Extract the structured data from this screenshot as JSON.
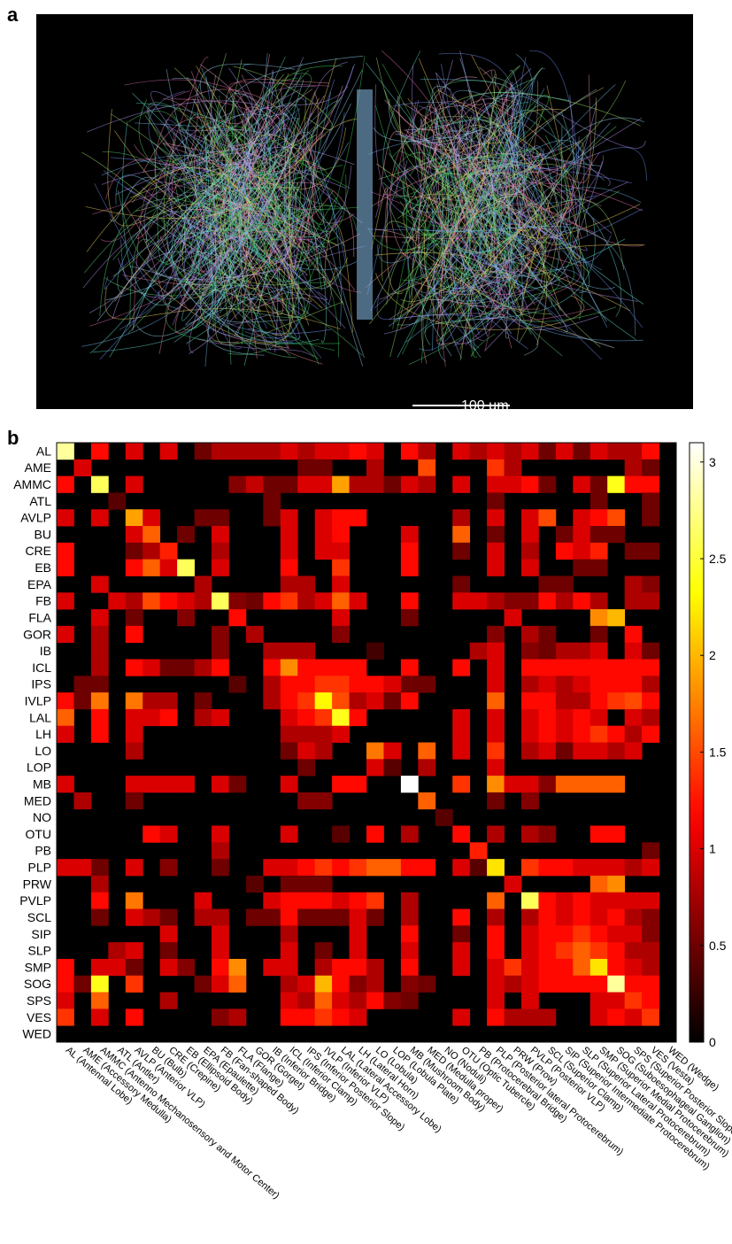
{
  "panel_labels": {
    "a": "a",
    "b": "b"
  },
  "scale_bar": {
    "label": "100 µm"
  },
  "chart_data": {
    "type": "heatmap",
    "title": "",
    "rows": [
      "AL",
      "AME",
      "AMMC",
      "ATL",
      "AVLP",
      "BU",
      "CRE",
      "EB",
      "EPA",
      "FB",
      "FLA",
      "GOR",
      "IB",
      "ICL",
      "IPS",
      "IVLP",
      "LAL",
      "LH",
      "LO",
      "LOP",
      "MB",
      "MED",
      "NO",
      "OTU",
      "PB",
      "PLP",
      "PRW",
      "PVLP",
      "SCL",
      "SIP",
      "SLP",
      "SMP",
      "SOG",
      "SPS",
      "VES",
      "WED"
    ],
    "columns": [
      "AL (Antennal Lobe)",
      "AME (Accessory Medulla)",
      "AMMC (Antenno Mechanosensory and Motor Center)",
      "ATL (Antler)",
      "AVLP (Anterior VLP)",
      "BU (Bulb)",
      "CRE (Crepine)",
      "EB (Ellipsoid Body)",
      "EPA (Epaulette)",
      "FB (Fan-shaped Body)",
      "FLA (Flange)",
      "GOR (Gorget)",
      "IB (Inferior Bridge)",
      "ICL (Inferior Clamp)",
      "IPS (Inferior Posterior Slope)",
      "IVLP (Inferior VLP)",
      "LAL (Lateral Accessory Lobe)",
      "LH (Lateral Horn)",
      "LO (Lobula)",
      "LOP (Lobula Plate)",
      "MB (Mushroom Body)",
      "MED (Medulla proper)",
      "NO (Noduli)",
      "OTU (Optic Tubercle)",
      "PB (Protocerebral Bridge)",
      "PLP (Posterior lateral Protocerebrum)",
      "PRW (Prow)",
      "PVLP (Posterior VLP)",
      "SCL (Superior Clamp)",
      "SIP (Superior Intermediate Protocerebrum)",
      "SLP (Superior Lateral Protocerebrum)",
      "SMP (Superior Medial Protocerebrum)",
      "SOG (Suboesophageal Ganglion)",
      "SPS (Superior Posterior Slope)",
      "VES (Vesta)",
      "WED (Wedge)"
    ],
    "colorbar": {
      "min": 0,
      "max": 3.1,
      "ticks": [
        "0",
        "0.5",
        "1",
        "1.5",
        "2",
        "2.5",
        "3"
      ],
      "colormap": "hot"
    },
    "values": [
      [
        2.8,
        0,
        1.2,
        0,
        1.0,
        0,
        1.0,
        0,
        0.5,
        0.8,
        0.8,
        0.8,
        0.8,
        1.0,
        0.8,
        1.0,
        1.0,
        1.2,
        1.0,
        0,
        1.2,
        0.8,
        0,
        1.0,
        0.8,
        1.0,
        0.8,
        1.0,
        0.5,
        1.0,
        0.5,
        1.0,
        0.8,
        0.8,
        1.2,
        0
      ],
      [
        0,
        1.0,
        0,
        0,
        0,
        0,
        0,
        0,
        0,
        0,
        0,
        0,
        0,
        0,
        0.5,
        0.5,
        0,
        0,
        0.8,
        0,
        0,
        1.5,
        0,
        0,
        0,
        1.4,
        0.8,
        0,
        0,
        0,
        0,
        0,
        0,
        0.8,
        0.5,
        0
      ],
      [
        1.2,
        0,
        2.6,
        0,
        1.0,
        0,
        0,
        0,
        0,
        0,
        0.6,
        0.9,
        0.5,
        0.5,
        1.0,
        1.0,
        1.9,
        0.8,
        0.8,
        0.5,
        1.0,
        0.8,
        0,
        1.0,
        0,
        1.0,
        1.0,
        1.2,
        0.5,
        0,
        1.0,
        0.5,
        2.4,
        1.2,
        1.2,
        0
      ],
      [
        0,
        0,
        0,
        0.4,
        0,
        0,
        0,
        0,
        0,
        0,
        0,
        0,
        0.5,
        0,
        0,
        0,
        0,
        0,
        0,
        0,
        0,
        0,
        0,
        0,
        0,
        0.5,
        0,
        0,
        0,
        0,
        0,
        0.5,
        0,
        0,
        0.5,
        0
      ],
      [
        1.0,
        0,
        1.0,
        0,
        1.9,
        1.0,
        0,
        0,
        0.5,
        0.5,
        0,
        0,
        0.5,
        1.0,
        0,
        1.0,
        1.2,
        1.2,
        0,
        0,
        0,
        0,
        0,
        0.8,
        0,
        1.0,
        0,
        1.0,
        1.5,
        0,
        1.0,
        1.2,
        1.5,
        0,
        0.5,
        0
      ],
      [
        0,
        0,
        0,
        0,
        1.0,
        1.6,
        0,
        0.5,
        0,
        1.0,
        0,
        0,
        0,
        1.0,
        0,
        1.0,
        1.2,
        0,
        0,
        0,
        1.0,
        0,
        0,
        1.6,
        0,
        0.5,
        0,
        1.0,
        0,
        0.5,
        1.0,
        0.5,
        0.5,
        0,
        0,
        0
      ],
      [
        1.2,
        0,
        0,
        0,
        0.5,
        0.8,
        1.3,
        0,
        0,
        0.8,
        0,
        0,
        0,
        1.0,
        0,
        1.0,
        1.0,
        0,
        0,
        0,
        1.2,
        0,
        0,
        0.5,
        0,
        1.0,
        0,
        0.8,
        0,
        1.2,
        1.0,
        1.3,
        0,
        0.5,
        0.5,
        0
      ],
      [
        1.2,
        0,
        0,
        0,
        1.2,
        1.6,
        1.0,
        2.6,
        0,
        1.0,
        0,
        0,
        0,
        1.2,
        0,
        0,
        1.4,
        0,
        0,
        0,
        1.2,
        0,
        0,
        0,
        0,
        1.0,
        0,
        1.0,
        0,
        0,
        0.5,
        0.5,
        0,
        0,
        0,
        0
      ],
      [
        0,
        0,
        1.0,
        0,
        0,
        0,
        0,
        0,
        0.8,
        0,
        0,
        0,
        0,
        0.8,
        0.8,
        0,
        1.0,
        0,
        0,
        0,
        0,
        0,
        0,
        0.5,
        0,
        0,
        0,
        0,
        0.5,
        0.5,
        0,
        0,
        0,
        0.8,
        0.6,
        0
      ],
      [
        1.0,
        0,
        0,
        1.0,
        0.8,
        1.5,
        1.2,
        1.0,
        0.8,
        2.6,
        0.6,
        0.5,
        1.2,
        1.4,
        0.8,
        1.0,
        1.6,
        1.0,
        0,
        0,
        1.2,
        0,
        0,
        1.0,
        1.0,
        0.8,
        0.6,
        0.6,
        1.2,
        0.8,
        1.2,
        0.8,
        0,
        0.8,
        0.8,
        0
      ],
      [
        0,
        0,
        1.0,
        0,
        0.5,
        0,
        0,
        0.6,
        0,
        0,
        1.2,
        0,
        0,
        0,
        0,
        0,
        1.0,
        0,
        0,
        0,
        0.5,
        0,
        0,
        0,
        0,
        0,
        1.0,
        0,
        0,
        0,
        0,
        1.8,
        2.0,
        0,
        0,
        0
      ],
      [
        1.0,
        0,
        0.8,
        0,
        1.2,
        0,
        0,
        0,
        0,
        0.6,
        0,
        0.8,
        0,
        0,
        0,
        0,
        0.6,
        0,
        0,
        0,
        0,
        0,
        0,
        0,
        0,
        0.6,
        0,
        0.8,
        0.5,
        0,
        0,
        0.5,
        0,
        1.2,
        0,
        0
      ],
      [
        0,
        0,
        0.8,
        0,
        0,
        0,
        0,
        0,
        0,
        0.6,
        0,
        0,
        0.8,
        0.8,
        0.8,
        0,
        0,
        0,
        0.3,
        0,
        0,
        0,
        0,
        0,
        0.8,
        1.0,
        0,
        0.6,
        0.5,
        0.8,
        0.8,
        1.0,
        0,
        1.0,
        0.5,
        0
      ],
      [
        0,
        0,
        0.8,
        0,
        1.2,
        1.0,
        0.5,
        0.5,
        0.8,
        1.2,
        0,
        0,
        1.2,
        1.8,
        1.2,
        1.2,
        1.2,
        1.2,
        0,
        0,
        1.2,
        0,
        0,
        1.2,
        0,
        1.0,
        0,
        1.2,
        1.2,
        1.2,
        1.2,
        1.2,
        1.2,
        1.2,
        1.2,
        0
      ],
      [
        0,
        0.5,
        0.5,
        0,
        0,
        0,
        0,
        0,
        0,
        0,
        0.4,
        0,
        0.8,
        1.2,
        1.2,
        1.4,
        1.4,
        1.2,
        1.2,
        1.0,
        0.5,
        0.5,
        0,
        0,
        0,
        1.0,
        0,
        0.8,
        1.0,
        0.8,
        1.0,
        1.2,
        1.2,
        1.2,
        0.8,
        0
      ],
      [
        1.2,
        0.5,
        1.7,
        0,
        1.7,
        0.8,
        0.8,
        0,
        0.5,
        0,
        0,
        0,
        0.8,
        1.2,
        1.4,
        2.3,
        1.5,
        0.8,
        1.0,
        0.5,
        1.2,
        0,
        0,
        0,
        0,
        1.6,
        0,
        1.2,
        1.2,
        0.8,
        0.8,
        1.2,
        1.4,
        1.5,
        1.2,
        0
      ],
      [
        1.6,
        0,
        1.2,
        0,
        1.0,
        1.0,
        1.2,
        0,
        0.8,
        1.0,
        0,
        0,
        0,
        1.0,
        1.2,
        1.4,
        2.4,
        1.2,
        0,
        0,
        0,
        0,
        0,
        1.0,
        0,
        1.0,
        0,
        1.0,
        1.2,
        1.0,
        1.2,
        1.0,
        0,
        1.0,
        0.8,
        0
      ],
      [
        1.0,
        0,
        1.2,
        0,
        1.0,
        0,
        0,
        0,
        0,
        0,
        0,
        0,
        0,
        0.8,
        0.8,
        0.8,
        1.0,
        0,
        0,
        0,
        0,
        0,
        0,
        1.0,
        0,
        1.0,
        0,
        1.0,
        1.2,
        1.0,
        1.2,
        1.4,
        1.2,
        0.8,
        1.2,
        0
      ],
      [
        0,
        0,
        0,
        0,
        0.8,
        0,
        0,
        0,
        0,
        0,
        0,
        0,
        0,
        0.5,
        1.0,
        0.8,
        0,
        0,
        1.7,
        1.0,
        0,
        1.6,
        0,
        1.0,
        0,
        1.4,
        0,
        0.8,
        1.0,
        0.5,
        1.0,
        1.0,
        0.8,
        1.0,
        0,
        0
      ],
      [
        0,
        0,
        0,
        0,
        0,
        0,
        0,
        0,
        0,
        0,
        0,
        0,
        0,
        0,
        0.5,
        0,
        0,
        0,
        1.0,
        0.4,
        0,
        0.8,
        0,
        0,
        0,
        1.0,
        0,
        0,
        0,
        0,
        0,
        0,
        0,
        0,
        0,
        0
      ],
      [
        1.0,
        0,
        0,
        0,
        1.0,
        1.0,
        1.0,
        1.0,
        0,
        1.0,
        0.5,
        0,
        0,
        1.0,
        0,
        0,
        1.2,
        1.2,
        0,
        0,
        3.1,
        0,
        0,
        1.4,
        0,
        1.8,
        1.0,
        1.0,
        0.6,
        1.6,
        1.6,
        1.6,
        1.6,
        0,
        0,
        0
      ],
      [
        0,
        0.8,
        0,
        0,
        0.5,
        0,
        0,
        0,
        0,
        0,
        0,
        0,
        0,
        0,
        0.6,
        0.6,
        0,
        0,
        0,
        0,
        0,
        1.6,
        0,
        0,
        0,
        0.5,
        0,
        0.6,
        0,
        0,
        0,
        0,
        0,
        0,
        0,
        0
      ],
      [
        0,
        0,
        0,
        0,
        0,
        0,
        0,
        0,
        0,
        0,
        0,
        0,
        0,
        0,
        0,
        0,
        0,
        0,
        0,
        0,
        0,
        0,
        0.4,
        0,
        0,
        0,
        0,
        0,
        0,
        0,
        0,
        0,
        0,
        0,
        0,
        0
      ],
      [
        0,
        0,
        0,
        0,
        0,
        1.2,
        1.0,
        0,
        0,
        1.0,
        0,
        0,
        0,
        1.0,
        0,
        0,
        0.4,
        0,
        1.2,
        0,
        0.8,
        0,
        0,
        1.2,
        0,
        0.8,
        0,
        0.8,
        0.6,
        0,
        0,
        1.2,
        1.2,
        0,
        0,
        0
      ],
      [
        0,
        0,
        0,
        0,
        0,
        0,
        0,
        0,
        0,
        0.8,
        0,
        0,
        0,
        0,
        0,
        0,
        0,
        0,
        0,
        0,
        0,
        0,
        0,
        0,
        1.3,
        0,
        0,
        0,
        0,
        0,
        0,
        0,
        0,
        0,
        0.5,
        0
      ],
      [
        1.0,
        1.0,
        0.5,
        0,
        1.0,
        0,
        0.6,
        0,
        0,
        0.5,
        0,
        0,
        1.0,
        1.0,
        1.2,
        1.4,
        1.2,
        1.4,
        1.6,
        1.6,
        1.2,
        1.2,
        0,
        1.0,
        0.4,
        2.2,
        0,
        1.4,
        1.2,
        1.2,
        1.0,
        1.0,
        1.0,
        0.8,
        1.0,
        0
      ],
      [
        0,
        0,
        0.8,
        0,
        0,
        0,
        0,
        0,
        0,
        0,
        0,
        0.4,
        0,
        0.5,
        0.5,
        0.5,
        0,
        0,
        0,
        0,
        0,
        0,
        0,
        0,
        0,
        0,
        1.0,
        0,
        0,
        0,
        0,
        1.6,
        1.8,
        0,
        0,
        0
      ],
      [
        0,
        0,
        1.2,
        0,
        1.7,
        0,
        0,
        0,
        1.0,
        0,
        0,
        0,
        1.0,
        1.2,
        1.2,
        1.2,
        1.0,
        1.2,
        1.4,
        0,
        0.8,
        0,
        0,
        0,
        0,
        1.6,
        0,
        2.6,
        1.2,
        1.0,
        1.2,
        1.0,
        1.0,
        1.0,
        1.0,
        0
      ],
      [
        0,
        0,
        0.5,
        0,
        1.0,
        0.8,
        0.5,
        0,
        0.8,
        0.8,
        0,
        0.5,
        0.5,
        1.2,
        0.5,
        0.5,
        0.5,
        1.0,
        0.5,
        0,
        0.8,
        0,
        0,
        1.2,
        0,
        0.8,
        0,
        0.8,
        1.2,
        1.0,
        1.2,
        1.0,
        1.2,
        0.8,
        0.6,
        0
      ],
      [
        0,
        0,
        0,
        0,
        0,
        0,
        1.0,
        0,
        0,
        1.0,
        0,
        0,
        0,
        0.8,
        0,
        0,
        0,
        1.0,
        0,
        0,
        1.2,
        0,
        0,
        0.5,
        0,
        1.2,
        0,
        1.0,
        1.2,
        1.2,
        1.4,
        1.2,
        1.0,
        1.0,
        0.6,
        0
      ],
      [
        0,
        0,
        0,
        0.8,
        1.0,
        0,
        0.5,
        0,
        0,
        1.0,
        0,
        0,
        0,
        1.0,
        0,
        0.5,
        0,
        1.0,
        0,
        0,
        1.0,
        0,
        0,
        1.0,
        0,
        1.2,
        0,
        1.0,
        1.2,
        1.4,
        1.6,
        1.4,
        1.2,
        0.8,
        0.8,
        0
      ],
      [
        1.2,
        0,
        1.0,
        1.0,
        0.5,
        0,
        1.0,
        0.6,
        0,
        1.2,
        1.8,
        0,
        1.0,
        1.0,
        0,
        0.8,
        1.2,
        1.2,
        0.8,
        0,
        1.2,
        0,
        0,
        1.0,
        0,
        1.0,
        1.4,
        1.0,
        1.2,
        1.2,
        1.6,
        2.2,
        1.2,
        1.0,
        0.8,
        0
      ],
      [
        1.2,
        0.5,
        2.4,
        0,
        1.4,
        0,
        0,
        0,
        0.5,
        1.0,
        1.6,
        0,
        0,
        0.8,
        1.0,
        2.0,
        1.2,
        0.6,
        0.8,
        0,
        0.6,
        0.5,
        0,
        0,
        0,
        1.0,
        0.8,
        1.0,
        1.2,
        1.2,
        1.2,
        1.2,
        2.8,
        1.2,
        1.2,
        0
      ],
      [
        1.0,
        0,
        1.6,
        0,
        0,
        0,
        0.8,
        0,
        0,
        0,
        0,
        0,
        0,
        1.0,
        0.8,
        1.6,
        1.0,
        0.8,
        1.2,
        0.6,
        0.5,
        0,
        0,
        0,
        0,
        1.0,
        0,
        1.0,
        0,
        0,
        0,
        1.0,
        1.0,
        1.4,
        1.2,
        0
      ],
      [
        1.4,
        0,
        1.0,
        0,
        1.2,
        0,
        0,
        0,
        0,
        0.6,
        0.8,
        0,
        0,
        1.2,
        1.2,
        1.4,
        1.2,
        1.0,
        0,
        0,
        0,
        0,
        0,
        1.0,
        0,
        1.2,
        0.8,
        0.8,
        0.8,
        0,
        0,
        1.0,
        1.2,
        1.0,
        1.4,
        0
      ],
      [
        0,
        0,
        0,
        0,
        0,
        0,
        0,
        0,
        0,
        0,
        0,
        0,
        0,
        0,
        0,
        0,
        0,
        0,
        0,
        0,
        0,
        0,
        0,
        0,
        0,
        0,
        0,
        0,
        0,
        0,
        0,
        0,
        0,
        0,
        0,
        0
      ]
    ]
  }
}
